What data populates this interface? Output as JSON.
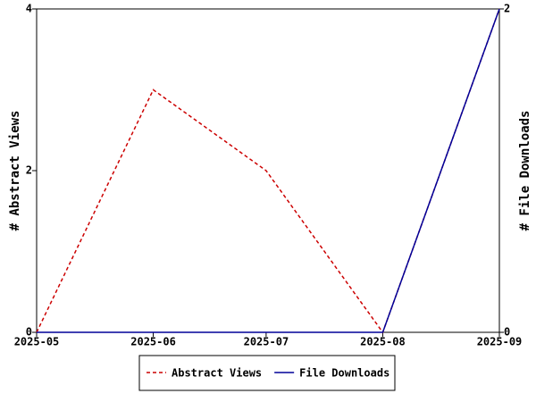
{
  "chart_data": {
    "type": "line",
    "x": [
      "2025-05",
      "2025-06",
      "2025-07",
      "2025-08",
      "2025-09"
    ],
    "series": [
      {
        "name": "Abstract Views",
        "color": "#cc0000",
        "line_style": "dashed",
        "values": [
          0,
          3,
          2,
          0,
          4
        ]
      },
      {
        "name": "File Downloads",
        "color": "#000099",
        "line_style": "solid",
        "axis": "y2",
        "values": [
          0,
          0,
          0,
          0,
          2
        ]
      }
    ],
    "ylabel": "# Abstract Views",
    "y2label": "# File Downloads",
    "ylim": [
      0,
      4
    ],
    "yticks": [
      0,
      2,
      4
    ],
    "y2lim": [
      0,
      2
    ],
    "y2ticks": [
      0,
      2
    ],
    "legend": "bottom"
  }
}
